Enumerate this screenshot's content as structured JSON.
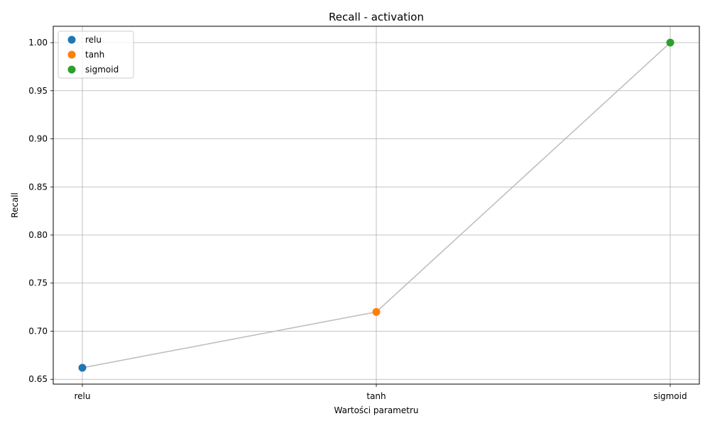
{
  "chart_data": {
    "type": "scatter",
    "title": "Recall - activation",
    "xlabel": "Wartości parametru",
    "ylabel": "Recall",
    "categories": [
      "relu",
      "tanh",
      "sigmoid"
    ],
    "series": [
      {
        "name": "relu",
        "x": "relu",
        "y": 0.662,
        "color": "#1f77b4"
      },
      {
        "name": "tanh",
        "x": "tanh",
        "y": 0.72,
        "color": "#ff7f0e"
      },
      {
        "name": "sigmoid",
        "x": "sigmoid",
        "y": 1.0,
        "color": "#2ca02c"
      }
    ],
    "connector_line": {
      "color": "#bfbfbf",
      "values": [
        0.662,
        0.72,
        1.0
      ]
    },
    "ylim": [
      0.645,
      1.017
    ],
    "yticks": [
      0.65,
      0.7,
      0.75,
      0.8,
      0.85,
      0.9,
      0.95,
      1.0
    ],
    "ytick_labels": [
      "0.65",
      "0.70",
      "0.75",
      "0.80",
      "0.85",
      "0.90",
      "0.95",
      "1.00"
    ],
    "grid": true,
    "legend_position": "top-left"
  }
}
